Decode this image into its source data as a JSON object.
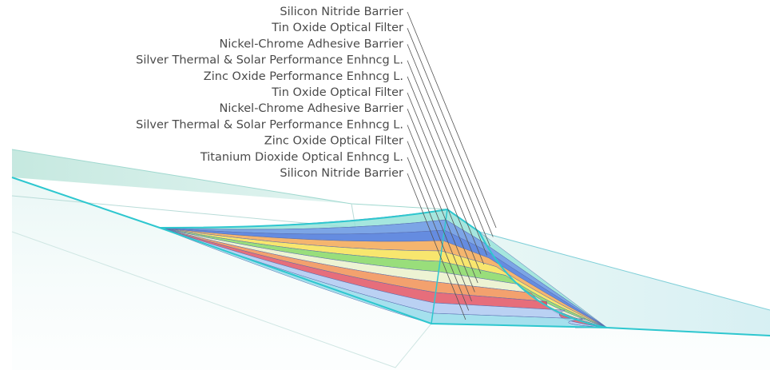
{
  "layers": [
    {
      "label": "Silicon Nitride Barrier"
    },
    {
      "label": "Tin Oxide Optical Filter"
    },
    {
      "label": "Nickel-Chrome Adhesive Barrier"
    },
    {
      "label": "Silver Thermal & Solar Performance Enhncg L."
    },
    {
      "label": "Zinc Oxide Performance Enhncg L."
    },
    {
      "label": "Tin Oxide Optical Filter"
    },
    {
      "label": "Nickel-Chrome Adhesive Barrier"
    },
    {
      "label": "Silver Thermal & Solar Performance Enhncg L."
    },
    {
      "label": "Zinc Oxide Optical Filter"
    },
    {
      "label": "Titanium Dioxide Optical Enhncg L."
    },
    {
      "label": "Silicon Nitride Barrier"
    }
  ]
}
